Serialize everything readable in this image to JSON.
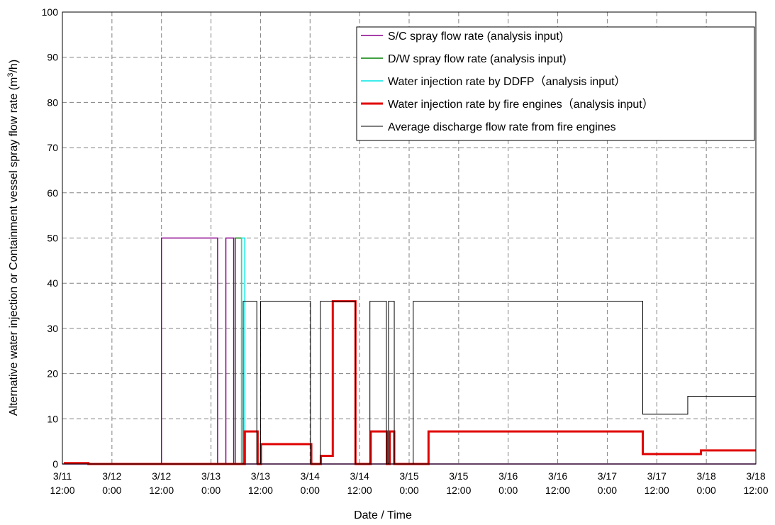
{
  "chart_data": {
    "type": "line",
    "xlabel": "Date / Time",
    "ylabel_main": "Alternative water injection or Containment vessel spray flow rate (m",
    "ylabel_sup": "3",
    "ylabel_end": "/h)",
    "ylim": [
      0,
      100
    ],
    "yticks": [
      "0",
      "10",
      "20",
      "30",
      "40",
      "50",
      "60",
      "70",
      "80",
      "90",
      "100"
    ],
    "xlim_hours": [
      0,
      168
    ],
    "xticks": [
      {
        "line1": "3/11",
        "line2": "12:00"
      },
      {
        "line1": "3/12",
        "line2": "0:00"
      },
      {
        "line1": "3/12",
        "line2": "12:00"
      },
      {
        "line1": "3/13",
        "line2": "0:00"
      },
      {
        "line1": "3/13",
        "line2": "12:00"
      },
      {
        "line1": "3/14",
        "line2": "0:00"
      },
      {
        "line1": "3/14",
        "line2": "12:00"
      },
      {
        "line1": "3/15",
        "line2": "0:00"
      },
      {
        "line1": "3/15",
        "line2": "12:00"
      },
      {
        "line1": "3/16",
        "line2": "0:00"
      },
      {
        "line1": "3/16",
        "line2": "12:00"
      },
      {
        "line1": "3/17",
        "line2": "0:00"
      },
      {
        "line1": "3/17",
        "line2": "12:00"
      },
      {
        "line1": "3/18",
        "line2": "0:00"
      },
      {
        "line1": "3/18",
        "line2": "12:00"
      }
    ],
    "grid": true,
    "legend_position": "top-right",
    "series": [
      {
        "name": "S/C spray flow rate (analysis input)",
        "color": "#8b008b",
        "width": 1.5,
        "points": [
          [
            0,
            0
          ],
          [
            24,
            0
          ],
          [
            24,
            50
          ],
          [
            37.6,
            50
          ],
          [
            37.6,
            0
          ],
          [
            39.6,
            0
          ],
          [
            39.6,
            50
          ],
          [
            41.5,
            50
          ],
          [
            41.5,
            0
          ],
          [
            168,
            0
          ]
        ]
      },
      {
        "name": "D/W spray flow rate (analysis input)",
        "color": "#008000",
        "width": 1.5,
        "points": [
          [
            41.9,
            0
          ],
          [
            41.9,
            50
          ],
          [
            43.4,
            50
          ],
          [
            43.4,
            0
          ]
        ]
      },
      {
        "name": "Water injection rate by DDFP（analysis input）",
        "color": "#00e5e5",
        "width": 1.5,
        "points": [
          [
            43.4,
            0
          ],
          [
            43.4,
            50
          ],
          [
            44.2,
            50
          ],
          [
            44.2,
            0
          ]
        ]
      },
      {
        "name": "Water injection rate by fire engines（analysis input）",
        "color": "#e00000",
        "width": 3,
        "points": [
          [
            0.6,
            0
          ],
          [
            0.6,
            0.2
          ],
          [
            6.3,
            0.2
          ],
          [
            6.3,
            0
          ],
          [
            44.2,
            0
          ],
          [
            44.2,
            7.2
          ],
          [
            47.3,
            7.2
          ],
          [
            47.3,
            0
          ],
          [
            48.1,
            0
          ],
          [
            48.1,
            4.4
          ],
          [
            60.3,
            4.4
          ],
          [
            60.3,
            0
          ],
          [
            62.6,
            0
          ],
          [
            62.6,
            1.8
          ],
          [
            65.5,
            1.8
          ],
          [
            65.5,
            36
          ],
          [
            71,
            36
          ],
          [
            71,
            0
          ],
          [
            74.7,
            0
          ],
          [
            74.7,
            7.2
          ],
          [
            78.6,
            7.2
          ],
          [
            78.6,
            0
          ],
          [
            79.3,
            0
          ],
          [
            79.3,
            7.2
          ],
          [
            80.4,
            7.2
          ],
          [
            80.4,
            0
          ],
          [
            88.7,
            0
          ],
          [
            88.7,
            7.2
          ],
          [
            140.6,
            7.2
          ],
          [
            140.6,
            2.2
          ],
          [
            154.7,
            2.2
          ],
          [
            154.7,
            3
          ],
          [
            168,
            3
          ]
        ]
      },
      {
        "name": "Average discharge flow rate from fire engines",
        "color": "#000000",
        "width": 1,
        "points": [
          [
            0,
            0
          ],
          [
            43.8,
            0
          ],
          [
            43.8,
            36
          ],
          [
            47.1,
            36
          ],
          [
            47.1,
            0
          ],
          [
            48,
            0
          ],
          [
            48,
            36
          ],
          [
            60.1,
            36
          ],
          [
            60.1,
            0
          ],
          [
            62.5,
            0
          ],
          [
            62.5,
            36
          ],
          [
            71,
            36
          ],
          [
            71,
            0
          ],
          [
            74.5,
            0
          ],
          [
            74.5,
            36
          ],
          [
            78.5,
            36
          ],
          [
            78.5,
            0
          ],
          [
            79,
            0
          ],
          [
            79,
            36
          ],
          [
            80.4,
            36
          ],
          [
            80.4,
            0
          ],
          [
            85,
            0
          ],
          [
            85,
            36
          ],
          [
            140.6,
            36
          ],
          [
            140.6,
            11
          ],
          [
            151.5,
            11
          ],
          [
            151.5,
            15
          ],
          [
            168,
            15
          ]
        ]
      }
    ]
  }
}
